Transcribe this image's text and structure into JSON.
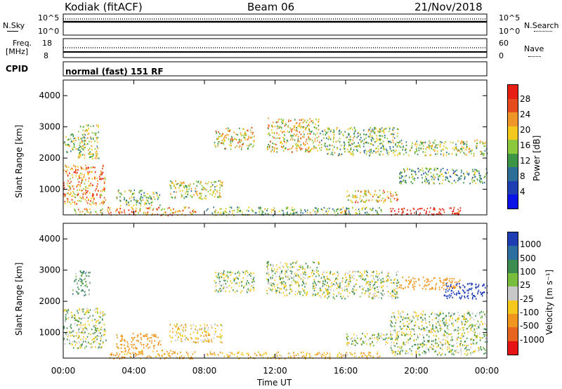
{
  "header": {
    "site": "Kodiak (fitACF)",
    "beam": "Beam 06",
    "date": "21/Nov/2018"
  },
  "noise_panel": {
    "left_label": "N.Sky",
    "left_top_tick": "10^5",
    "left_bottom_tick": "10^0",
    "right_label": "N.Search",
    "right_top_tick": "10^5",
    "right_bottom_tick": "10^0"
  },
  "freq_panel": {
    "left_label_1": "Freq.",
    "left_label_2": "[MHz]",
    "left_top_tick": "18",
    "left_bottom_tick": "8",
    "right_label": "Nave",
    "right_top_tick": "60",
    "right_bottom_tick": "0"
  },
  "cpid": {
    "label": "CPID",
    "value": "normal (fast) 151 RF"
  },
  "chart_data": [
    {
      "type": "heatmap",
      "title": "",
      "quantity": "Power",
      "colorbar_label": "Power [dB]",
      "colorbar_ticks": [
        "28",
        "24",
        "20",
        "16",
        "12",
        "8",
        "4"
      ],
      "colorbar_range": [
        0,
        30
      ],
      "colorbar_colors": [
        "#0a14e6",
        "#1e3fb4",
        "#2d6e96",
        "#3c9646",
        "#8cc83c",
        "#f5c81e",
        "#f09628",
        "#e64b1e",
        "#e61e14"
      ],
      "ylabel": "Slant Range [km]",
      "ylim": [
        180,
        4500
      ],
      "y_ticks": [
        "1000",
        "2000",
        "3000",
        "4000"
      ],
      "x_ticks": [
        "00:00",
        "04:00",
        "08:00",
        "12:00",
        "16:00",
        "20:00",
        "00:00"
      ],
      "xlim_hours": [
        0,
        24
      ],
      "grid": false,
      "echo_regions": [
        {
          "t0": 0.0,
          "t1": 2.4,
          "r0": 500,
          "r1": 1800,
          "power": 22
        },
        {
          "t0": 0.0,
          "t1": 1.2,
          "r0": 2200,
          "r1": 2800,
          "power": 14
        },
        {
          "t0": 0.8,
          "t1": 2.0,
          "r0": 2000,
          "r1": 3100,
          "power": 16
        },
        {
          "t0": 0.5,
          "t1": 2.5,
          "r0": 200,
          "r1": 400,
          "power": 18
        },
        {
          "t0": 2.5,
          "t1": 7.5,
          "r0": 180,
          "r1": 450,
          "power": 22
        },
        {
          "t0": 3.0,
          "t1": 5.5,
          "r0": 500,
          "r1": 1000,
          "power": 14
        },
        {
          "t0": 6.0,
          "t1": 9.0,
          "r0": 700,
          "r1": 1300,
          "power": 16
        },
        {
          "t0": 8.5,
          "t1": 10.8,
          "r0": 2300,
          "r1": 3000,
          "power": 18
        },
        {
          "t0": 11.5,
          "t1": 14.5,
          "r0": 2200,
          "r1": 3300,
          "power": 18
        },
        {
          "t0": 14.5,
          "t1": 19.0,
          "r0": 2100,
          "r1": 3000,
          "power": 14
        },
        {
          "t0": 16.0,
          "t1": 19.0,
          "r0": 600,
          "r1": 1000,
          "power": 20
        },
        {
          "t0": 19.0,
          "t1": 24.0,
          "r0": 2100,
          "r1": 2600,
          "power": 16
        },
        {
          "t0": 18.5,
          "t1": 22.5,
          "r0": 200,
          "r1": 450,
          "power": 30
        },
        {
          "t0": 19.0,
          "t1": 24.0,
          "r0": 1200,
          "r1": 1700,
          "power": 12
        },
        {
          "t0": 8.0,
          "t1": 18.0,
          "r0": 180,
          "r1": 450,
          "power": 14
        }
      ]
    },
    {
      "type": "heatmap",
      "title": "",
      "quantity": "Velocity",
      "colorbar_label": "Velocity [m s⁻¹]",
      "colorbar_ticks": [
        "1000",
        "500",
        "100",
        "25",
        "-25",
        "-100",
        "-500",
        "-1000"
      ],
      "colorbar_range": [
        -1000,
        1000
      ],
      "colorbar_colors": [
        "#1e3cb4",
        "#2d6ea0",
        "#3c8c50",
        "#78be3c",
        "#c8c8c8",
        "#f5c81e",
        "#f0961e",
        "#e6641e",
        "#e61414"
      ],
      "ylabel": "Slant Range [km]",
      "ylim": [
        180,
        4500
      ],
      "y_ticks": [
        "1000",
        "2000",
        "3000",
        "4000"
      ],
      "x_ticks": [
        "00:00",
        "04:00",
        "08:00",
        "12:00",
        "16:00",
        "20:00",
        "00:00"
      ],
      "xlabel": "Time UT",
      "xlim_hours": [
        0,
        24
      ],
      "grid": false,
      "echo_regions": [
        {
          "t0": 0.0,
          "t1": 2.4,
          "r0": 500,
          "r1": 1800,
          "velocity": 0
        },
        {
          "t0": 0.5,
          "t1": 1.5,
          "r0": 2200,
          "r1": 3000,
          "velocity": 60
        },
        {
          "t0": 2.5,
          "t1": 7.5,
          "r0": 180,
          "r1": 450,
          "velocity": -150
        },
        {
          "t0": 3.0,
          "t1": 5.5,
          "r0": 500,
          "r1": 1000,
          "velocity": -200
        },
        {
          "t0": 6.0,
          "t1": 9.0,
          "r0": 700,
          "r1": 1300,
          "velocity": -60
        },
        {
          "t0": 8.5,
          "t1": 10.8,
          "r0": 2300,
          "r1": 3000,
          "velocity": 0
        },
        {
          "t0": 11.5,
          "t1": 14.5,
          "r0": 2200,
          "r1": 3300,
          "velocity": 0
        },
        {
          "t0": 14.5,
          "t1": 19.0,
          "r0": 2100,
          "r1": 3000,
          "velocity": 0
        },
        {
          "t0": 16.0,
          "t1": 19.0,
          "r0": 600,
          "r1": 1000,
          "velocity": 0
        },
        {
          "t0": 19.0,
          "t1": 22.5,
          "r0": 2400,
          "r1": 2800,
          "velocity": -300
        },
        {
          "t0": 21.5,
          "t1": 24.0,
          "r0": 2100,
          "r1": 2600,
          "velocity": 600
        },
        {
          "t0": 18.5,
          "t1": 24.0,
          "r0": 300,
          "r1": 1700,
          "velocity": 0
        },
        {
          "t0": 8.0,
          "t1": 18.0,
          "r0": 180,
          "r1": 400,
          "velocity": -80
        }
      ]
    }
  ]
}
